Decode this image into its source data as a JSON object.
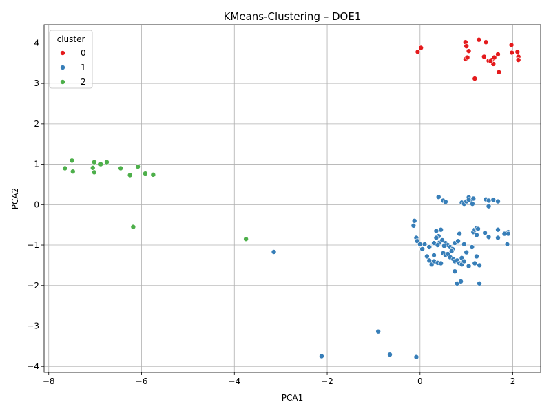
{
  "chart_data": {
    "type": "scatter",
    "title": "KMeans-Clustering – DOE1",
    "xlabel": "PCA1",
    "ylabel": "PCA2",
    "xlim": [
      -8.1,
      2.6
    ],
    "ylim": [
      -4.15,
      4.45
    ],
    "xticks": [
      -8,
      -6,
      -4,
      -2,
      0,
      2
    ],
    "yticks": [
      -4,
      -3,
      -2,
      -1,
      0,
      1,
      2,
      3,
      4
    ],
    "xtick_labels": [
      "−8",
      "−6",
      "−4",
      "−2",
      "0",
      "2"
    ],
    "ytick_labels": [
      "−4",
      "−3",
      "−2",
      "−1",
      "0",
      "1",
      "2",
      "3",
      "4"
    ],
    "grid": true,
    "legend": {
      "title": "cluster",
      "placement": "top-left"
    },
    "series": [
      {
        "name": "0",
        "color": "#e41a1c",
        "points": [
          [
            -0.05,
            3.78
          ],
          [
            0.02,
            3.88
          ],
          [
            0.98,
            4.02
          ],
          [
            1.0,
            3.92
          ],
          [
            1.05,
            3.8
          ],
          [
            1.27,
            4.08
          ],
          [
            1.42,
            4.02
          ],
          [
            1.38,
            3.66
          ],
          [
            1.48,
            3.56
          ],
          [
            1.55,
            3.58
          ],
          [
            1.58,
            3.48
          ],
          [
            1.6,
            3.64
          ],
          [
            1.68,
            3.72
          ],
          [
            1.7,
            3.28
          ],
          [
            1.97,
            3.95
          ],
          [
            1.98,
            3.76
          ],
          [
            2.1,
            3.78
          ],
          [
            2.12,
            3.66
          ],
          [
            2.12,
            3.58
          ],
          [
            1.18,
            3.12
          ],
          [
            0.98,
            3.6
          ],
          [
            1.02,
            3.64
          ],
          [
            1.52,
            3.55
          ]
        ]
      },
      {
        "name": "1",
        "color": "#377eb8",
        "points": [
          [
            0.4,
            0.19
          ],
          [
            0.5,
            0.1
          ],
          [
            0.55,
            0.07
          ],
          [
            0.9,
            0.05
          ],
          [
            0.95,
            0.02
          ],
          [
            1.0,
            0.08
          ],
          [
            1.05,
            0.18
          ],
          [
            1.1,
            0.12
          ],
          [
            1.13,
            0.02
          ],
          [
            1.15,
            0.15
          ],
          [
            1.05,
            0.12
          ],
          [
            1.42,
            0.13
          ],
          [
            1.48,
            0.1
          ],
          [
            1.58,
            0.12
          ],
          [
            1.68,
            0.08
          ],
          [
            1.48,
            -0.04
          ],
          [
            -0.12,
            -0.4
          ],
          [
            -0.14,
            -0.52
          ],
          [
            -0.08,
            -0.82
          ],
          [
            -0.06,
            -0.9
          ],
          [
            0.0,
            -0.98
          ],
          [
            0.05,
            -1.1
          ],
          [
            0.35,
            -0.65
          ],
          [
            0.45,
            -0.62
          ],
          [
            0.4,
            -0.78
          ],
          [
            0.35,
            -0.82
          ],
          [
            0.42,
            -0.94
          ],
          [
            0.48,
            -0.88
          ],
          [
            0.55,
            -0.95
          ],
          [
            0.6,
            -1.0
          ],
          [
            0.65,
            -1.05
          ],
          [
            0.7,
            -1.1
          ],
          [
            0.75,
            -0.95
          ],
          [
            0.82,
            -0.9
          ],
          [
            0.85,
            -0.72
          ],
          [
            0.9,
            -1.32
          ],
          [
            0.95,
            -0.98
          ],
          [
            1.0,
            -1.18
          ],
          [
            1.12,
            -1.05
          ],
          [
            1.15,
            -0.68
          ],
          [
            1.18,
            -0.62
          ],
          [
            1.22,
            -0.58
          ],
          [
            1.25,
            -0.6
          ],
          [
            1.22,
            -0.75
          ],
          [
            1.4,
            -0.7
          ],
          [
            1.48,
            -0.8
          ],
          [
            1.68,
            -0.62
          ],
          [
            1.68,
            -0.82
          ],
          [
            1.82,
            -0.72
          ],
          [
            1.9,
            -0.68
          ],
          [
            1.9,
            -0.72
          ],
          [
            1.88,
            -0.98
          ],
          [
            0.2,
            -1.05
          ],
          [
            0.15,
            -1.28
          ],
          [
            0.2,
            -1.38
          ],
          [
            0.25,
            -1.48
          ],
          [
            0.3,
            -1.4
          ],
          [
            0.3,
            -1.25
          ],
          [
            0.38,
            -1.44
          ],
          [
            0.45,
            -1.45
          ],
          [
            0.5,
            -1.2
          ],
          [
            0.55,
            -1.25
          ],
          [
            0.6,
            -1.22
          ],
          [
            0.65,
            -1.3
          ],
          [
            0.72,
            -1.35
          ],
          [
            0.75,
            -1.4
          ],
          [
            0.8,
            -1.38
          ],
          [
            0.85,
            -1.45
          ],
          [
            0.9,
            -1.48
          ],
          [
            0.95,
            -1.4
          ],
          [
            1.05,
            -1.52
          ],
          [
            1.18,
            -1.45
          ],
          [
            1.28,
            -1.5
          ],
          [
            0.75,
            -1.65
          ],
          [
            0.8,
            -1.95
          ],
          [
            0.88,
            -1.9
          ],
          [
            1.28,
            -1.95
          ],
          [
            0.1,
            -0.98
          ],
          [
            0.3,
            -0.95
          ],
          [
            0.38,
            -1.0
          ],
          [
            0.52,
            -1.02
          ],
          [
            0.68,
            -1.15
          ],
          [
            1.22,
            -1.28
          ],
          [
            -3.15,
            -1.17
          ],
          [
            -0.9,
            -3.14
          ],
          [
            -2.12,
            -3.75
          ],
          [
            -0.65,
            -3.71
          ],
          [
            -0.08,
            -3.77
          ]
        ]
      },
      {
        "name": "2",
        "color": "#4daf4a",
        "points": [
          [
            -7.5,
            1.09
          ],
          [
            -7.65,
            0.9
          ],
          [
            -7.48,
            0.82
          ],
          [
            -7.02,
            1.05
          ],
          [
            -7.05,
            0.91
          ],
          [
            -7.02,
            0.8
          ],
          [
            -6.88,
            1.0
          ],
          [
            -6.75,
            1.05
          ],
          [
            -6.45,
            0.9
          ],
          [
            -6.25,
            0.73
          ],
          [
            -6.08,
            0.94
          ],
          [
            -5.92,
            0.77
          ],
          [
            -5.75,
            0.74
          ],
          [
            -6.18,
            -0.55
          ],
          [
            -3.75,
            -0.85
          ]
        ]
      }
    ]
  }
}
